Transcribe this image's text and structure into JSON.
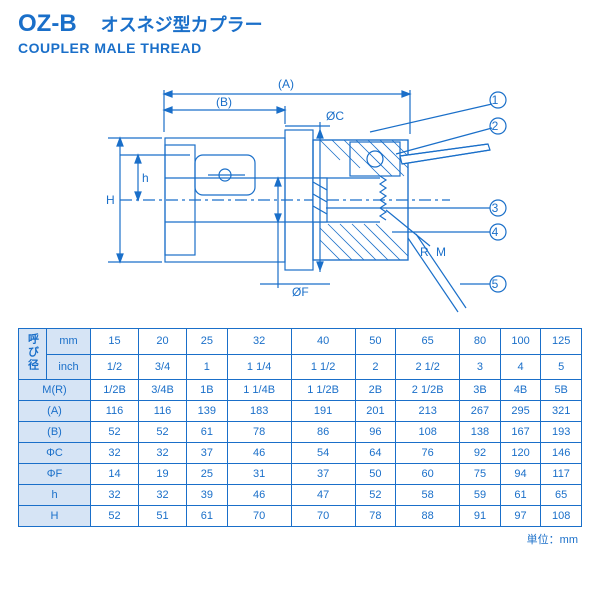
{
  "header": {
    "code": "OZ-B",
    "jp_title": "オスネジ型カプラー",
    "en_subtitle": "COUPLER MALE THREAD"
  },
  "diagram": {
    "stroke": "#1a6fc9",
    "labels": [
      "(A)",
      "(B)",
      "ØC",
      "ØF",
      "h",
      "H",
      "R",
      "M"
    ],
    "callouts": [
      "1",
      "2",
      "3",
      "4",
      "5"
    ]
  },
  "table": {
    "border_color": "#1a6fc9",
    "header_bg": "#d6e4f5",
    "text_color": "#1a6fc9",
    "corner_label": "呼び径",
    "unit_row_labels": [
      "mm",
      "inch"
    ],
    "row_labels": [
      "M(R)",
      "(A)",
      "(B)",
      "ΦC",
      "ΦF",
      "h",
      "H"
    ],
    "columns_mm": [
      "15",
      "20",
      "25",
      "32",
      "40",
      "50",
      "65",
      "80",
      "100",
      "125"
    ],
    "columns_inch": [
      "1/2",
      "3/4",
      "1",
      "1 1/4",
      "1 1/2",
      "2",
      "2 1/2",
      "3",
      "4",
      "5"
    ],
    "rows": {
      "M(R)": [
        "1/2B",
        "3/4B",
        "1B",
        "1 1/4B",
        "1 1/2B",
        "2B",
        "2 1/2B",
        "3B",
        "4B",
        "5B"
      ],
      "(A)": [
        "116",
        "116",
        "139",
        "183",
        "191",
        "201",
        "213",
        "267",
        "295",
        "321"
      ],
      "(B)": [
        "52",
        "52",
        "61",
        "78",
        "86",
        "96",
        "108",
        "138",
        "167",
        "193"
      ],
      "ΦC": [
        "32",
        "32",
        "37",
        "46",
        "54",
        "64",
        "76",
        "92",
        "120",
        "146"
      ],
      "ΦF": [
        "14",
        "19",
        "25",
        "31",
        "37",
        "50",
        "60",
        "75",
        "94",
        "117"
      ],
      "h": [
        "32",
        "32",
        "39",
        "46",
        "47",
        "52",
        "58",
        "59",
        "61",
        "65"
      ],
      "H": [
        "52",
        "51",
        "61",
        "70",
        "70",
        "78",
        "88",
        "91",
        "97",
        "108"
      ]
    },
    "unit_note": "単位：mm"
  }
}
